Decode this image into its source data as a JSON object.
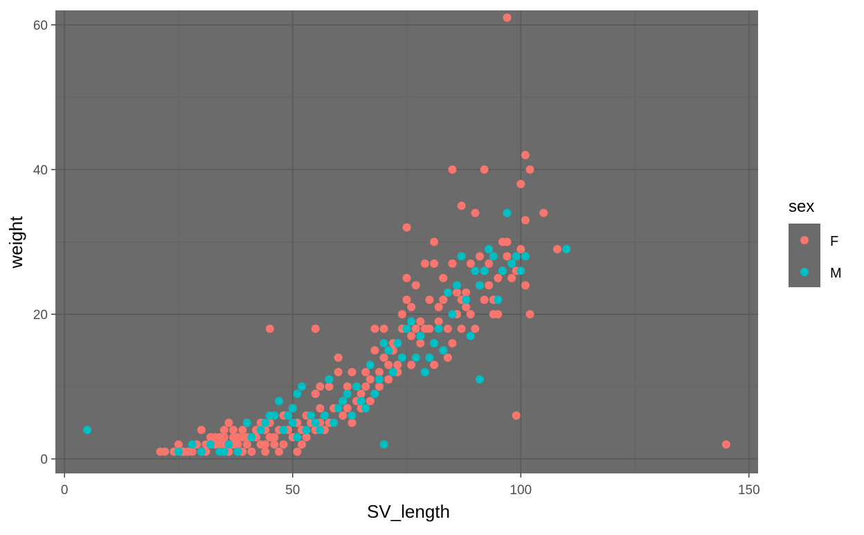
{
  "chart_data": {
    "type": "scatter",
    "xlabel": "SV_length",
    "ylabel": "weight",
    "xlim": [
      -2,
      152
    ],
    "ylim": [
      -2,
      62
    ],
    "x_ticks": [
      0,
      50,
      100,
      150
    ],
    "x_tick_labels": [
      "0",
      "50",
      "100",
      "150"
    ],
    "y_ticks": [
      0,
      20,
      40,
      60
    ],
    "y_tick_labels": [
      "0",
      "20",
      "40",
      "60"
    ],
    "x_minor": [
      25,
      75,
      125
    ],
    "y_minor": [
      10,
      30,
      50
    ],
    "grid": true,
    "legend": {
      "title": "sex",
      "position": "right",
      "entries": [
        "F",
        "M"
      ]
    },
    "colors": {
      "F": "#f8766d",
      "M": "#00bfc4",
      "panel": "#6b6b6b",
      "grid_major": "#595959",
      "grid_minor": "#626262",
      "legend_key": "#6b6b6b"
    },
    "series": [
      {
        "name": "F",
        "x": [
          21,
          22,
          24,
          25,
          26,
          26,
          27,
          28,
          29,
          30,
          31,
          31,
          32,
          33,
          33,
          34,
          34,
          35,
          35,
          35,
          36,
          36,
          37,
          37,
          37,
          38,
          38,
          38,
          39,
          39,
          39,
          40,
          40,
          41,
          41,
          42,
          42,
          43,
          43,
          44,
          44,
          45,
          45,
          46,
          46,
          47,
          47,
          48,
          49,
          49,
          50,
          50,
          51,
          51,
          52,
          52,
          53,
          53,
          54,
          55,
          55,
          56,
          56,
          57,
          57,
          58,
          58,
          59,
          59,
          60,
          60,
          61,
          61,
          62,
          62,
          63,
          63,
          64,
          64,
          65,
          65,
          66,
          66,
          67,
          67,
          68,
          68,
          69,
          69,
          70,
          70,
          71,
          71,
          72,
          72,
          73,
          74,
          74,
          75,
          75,
          76,
          76,
          77,
          77,
          78,
          78,
          79,
          79,
          80,
          80,
          81,
          81,
          82,
          82,
          83,
          83,
          84,
          84,
          85,
          85,
          86,
          86,
          87,
          87,
          88,
          88,
          89,
          89,
          90,
          90,
          91,
          91,
          92,
          92,
          93,
          93,
          94,
          94,
          95,
          95,
          96,
          96,
          97,
          97,
          98,
          99,
          100,
          100,
          101,
          101,
          102,
          102,
          105,
          108,
          145,
          97,
          45,
          55,
          75,
          85,
          87,
          92,
          101,
          99,
          30,
          36,
          40,
          44,
          48,
          56,
          62,
          73,
          76,
          81
        ],
        "y": [
          1,
          1,
          1,
          2,
          1,
          1,
          1,
          1,
          2,
          1,
          1,
          2,
          3,
          2,
          3,
          3,
          2,
          4,
          3,
          2,
          5,
          1,
          4,
          3,
          2,
          3,
          2,
          1,
          4,
          3,
          1,
          5,
          2,
          3,
          1,
          4,
          3,
          5,
          2,
          4,
          1,
          5,
          3,
          3,
          2,
          4,
          1,
          2,
          4,
          6,
          7,
          3,
          5,
          1,
          4,
          2,
          3,
          6,
          5,
          4,
          9,
          5,
          10,
          4,
          6,
          5,
          10,
          7,
          5,
          12,
          14,
          6,
          8,
          10,
          7,
          12,
          5,
          10,
          8,
          9,
          7,
          10,
          12,
          8,
          11,
          15,
          18,
          12,
          10,
          18,
          14,
          13,
          11,
          16,
          15,
          13,
          18,
          20,
          25,
          22,
          21,
          17,
          18,
          24,
          16,
          19,
          27,
          18,
          22,
          18,
          27,
          30,
          21,
          19,
          25,
          22,
          18,
          14,
          27,
          16,
          20,
          23,
          35,
          18,
          23,
          21,
          20,
          27,
          18,
          34,
          28,
          24,
          40,
          26,
          27,
          24,
          22,
          20,
          25,
          20,
          26,
          30,
          28,
          30,
          25,
          26,
          29,
          38,
          33,
          24,
          20,
          40,
          34,
          29,
          2,
          61,
          18,
          18,
          32,
          40,
          22,
          22,
          42,
          6,
          4,
          2,
          3,
          2,
          6,
          7,
          10,
          12,
          13,
          13
        ]
      },
      {
        "name": "M",
        "x": [
          5,
          25,
          28,
          30,
          32,
          34,
          35,
          36,
          38,
          40,
          41,
          43,
          44,
          45,
          46,
          47,
          48,
          49,
          50,
          50,
          51,
          51,
          52,
          53,
          54,
          55,
          56,
          57,
          58,
          59,
          60,
          61,
          62,
          63,
          64,
          65,
          66,
          67,
          68,
          69,
          70,
          71,
          72,
          73,
          74,
          75,
          76,
          77,
          78,
          79,
          80,
          81,
          82,
          83,
          84,
          85,
          86,
          87,
          88,
          89,
          90,
          91,
          92,
          93,
          94,
          95,
          96,
          97,
          98,
          99,
          100,
          101,
          110,
          70,
          91
        ],
        "y": [
          4,
          1,
          2,
          1,
          2,
          1,
          1,
          2,
          1,
          5,
          3,
          4,
          5,
          6,
          6,
          8,
          4,
          6,
          5,
          7,
          9,
          3,
          10,
          4,
          6,
          5,
          4,
          6,
          11,
          5,
          7,
          8,
          9,
          6,
          10,
          8,
          7,
          13,
          9,
          11,
          16,
          15,
          12,
          16,
          14,
          18,
          19,
          14,
          17,
          12,
          14,
          16,
          18,
          15,
          23,
          20,
          24,
          28,
          22,
          17,
          26,
          24,
          26,
          29,
          28,
          22,
          26,
          34,
          27,
          28,
          26,
          28,
          29,
          2,
          11
        ]
      }
    ]
  }
}
